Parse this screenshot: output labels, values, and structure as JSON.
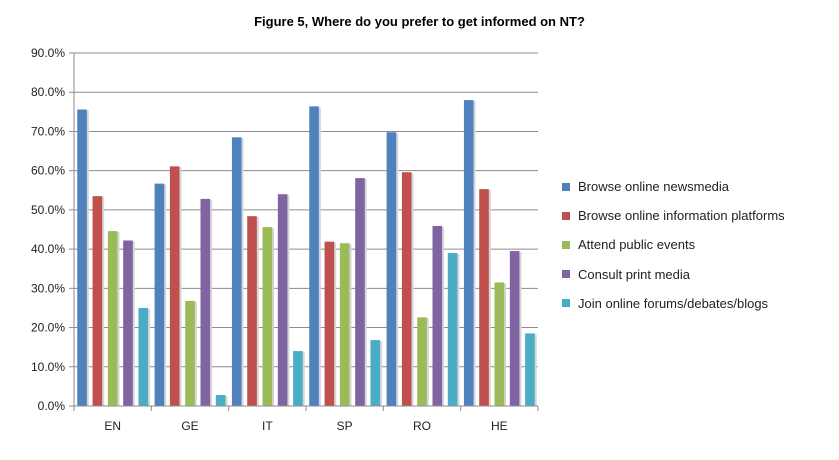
{
  "chart_data": {
    "type": "bar",
    "title": "Figure 5, Where do you prefer to get informed on NT?",
    "categories": [
      "EN",
      "GE",
      "IT",
      "SP",
      "RO",
      "HE"
    ],
    "y_ticks": [
      "0.0%",
      "10.0%",
      "20.0%",
      "30.0%",
      "40.0%",
      "50.0%",
      "60.0%",
      "70.0%",
      "80.0%",
      "90.0%"
    ],
    "ylim": [
      0,
      90
    ],
    "grid": true,
    "legend_position": "right",
    "series": [
      {
        "name": "Browse online newsmedia",
        "color": "#4F81BD",
        "values": [
          75.6,
          56.7,
          68.5,
          76.4,
          69.8,
          78.0
        ]
      },
      {
        "name": "Browse online information platforms",
        "color": "#C0504D",
        "values": [
          53.5,
          61.1,
          48.4,
          41.9,
          59.6,
          55.3
        ]
      },
      {
        "name": "Attend public events",
        "color": "#9BBB59",
        "values": [
          44.6,
          26.8,
          45.6,
          41.5,
          22.6,
          31.5
        ]
      },
      {
        "name": "Consult print media",
        "color": "#8064A2",
        "values": [
          42.2,
          52.8,
          54.0,
          58.1,
          45.9,
          39.5
        ]
      },
      {
        "name": "Join online forums/debates/blogs",
        "color": "#4BACC6",
        "values": [
          25.0,
          2.8,
          14.0,
          16.8,
          39.0,
          18.5
        ]
      }
    ]
  }
}
